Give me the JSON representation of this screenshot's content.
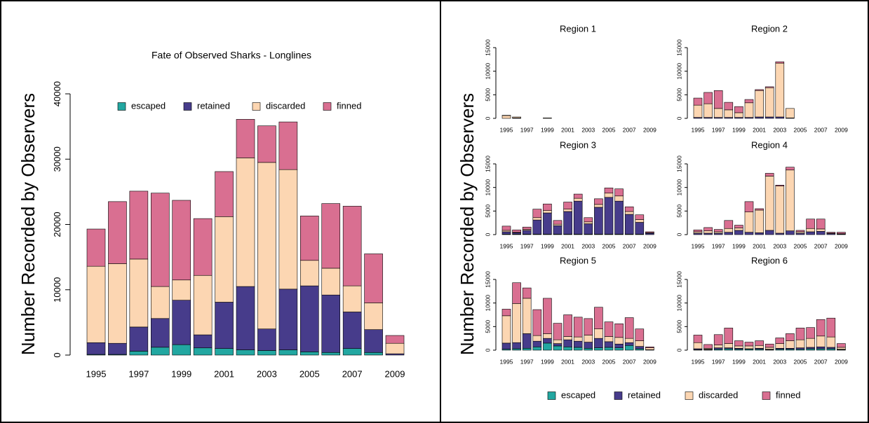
{
  "chart_data": [
    {
      "type": "bar",
      "stacked": true,
      "title": "Fate of Observed Sharks - Longlines",
      "ylabel": "Number Recorded by Observers",
      "categories": [
        "1995",
        null,
        "1997",
        null,
        "1999",
        null,
        "2001",
        null,
        "2003",
        null,
        "2005",
        null,
        "2007",
        null,
        "2009"
      ],
      "ylim": [
        0,
        40000
      ],
      "yticks": [
        0,
        10000,
        20000,
        30000,
        40000
      ],
      "series": [
        {
          "name": "escaped",
          "color": "#22a7a1",
          "values": [
            100,
            100,
            600,
            1200,
            1600,
            1100,
            1000,
            800,
            700,
            800,
            500,
            400,
            1000,
            400,
            0
          ]
        },
        {
          "name": "retained",
          "color": "#473c8b",
          "values": [
            1800,
            1700,
            3700,
            4400,
            6800,
            2000,
            7100,
            9700,
            3300,
            9300,
            10100,
            8800,
            5600,
            3500,
            200
          ]
        },
        {
          "name": "discarded",
          "color": "#fcd6b2",
          "values": [
            11700,
            12200,
            10400,
            4900,
            3100,
            9100,
            13100,
            19700,
            25500,
            18300,
            3900,
            4100,
            4000,
            4100,
            1600
          ]
        },
        {
          "name": "finned",
          "color": "#d96f91",
          "values": [
            5700,
            9500,
            10400,
            14300,
            12200,
            8700,
            6900,
            5900,
            5600,
            7300,
            6800,
            9900,
            12200,
            7500,
            1200
          ]
        }
      ]
    },
    {
      "type": "bar",
      "stacked": true,
      "ylabel": "Number Recorded by Observers",
      "categories": [
        "1995",
        null,
        "1997",
        null,
        "1999",
        null,
        "2001",
        null,
        "2003",
        null,
        "2005",
        null,
        "2007",
        null,
        "2009"
      ],
      "ylim": [
        0,
        15000
      ],
      "yticks": [
        0,
        5000,
        10000,
        15000
      ],
      "series": [
        {
          "name": "escaped",
          "color": "#22a7a1"
        },
        {
          "name": "retained",
          "color": "#473c8b"
        },
        {
          "name": "discarded",
          "color": "#fcd6b2"
        },
        {
          "name": "finned",
          "color": "#d96f91"
        }
      ],
      "panels": [
        {
          "title": "Region 1",
          "values": [
            [
              0,
              0,
              0,
              0,
              0,
              0,
              0,
              0,
              0,
              0,
              0,
              0,
              0,
              0,
              0
            ],
            [
              0,
              100,
              0,
              0,
              0,
              0,
              0,
              0,
              0,
              0,
              0,
              0,
              0,
              0,
              0
            ],
            [
              600,
              200,
              0,
              0,
              100,
              0,
              0,
              0,
              0,
              0,
              0,
              0,
              0,
              0,
              0
            ],
            [
              50,
              0,
              0,
              0,
              0,
              0,
              0,
              0,
              0,
              0,
              0,
              0,
              0,
              0,
              0
            ]
          ]
        },
        {
          "title": "Region 2",
          "values": [
            [
              0,
              0,
              0,
              0,
              0,
              0,
              0,
              0,
              0,
              0,
              0,
              0,
              0,
              0,
              0
            ],
            [
              200,
              200,
              200,
              200,
              200,
              200,
              300,
              300,
              300,
              100,
              0,
              0,
              0,
              0,
              0
            ],
            [
              2600,
              2900,
              1900,
              1600,
              1000,
              3100,
              5600,
              6200,
              11400,
              2000,
              0,
              0,
              0,
              0,
              0
            ],
            [
              1500,
              2400,
              3800,
              1600,
              1300,
              700,
              200,
              200,
              300,
              0,
              0,
              0,
              0,
              0,
              0
            ]
          ]
        },
        {
          "title": "Region 3",
          "values": [
            [
              100,
              100,
              100,
              100,
              100,
              100,
              100,
              100,
              100,
              100,
              100,
              100,
              100,
              100,
              0
            ],
            [
              500,
              300,
              800,
              3000,
              4500,
              1800,
              4800,
              7000,
              2200,
              5700,
              7800,
              7000,
              4200,
              2500,
              300
            ],
            [
              300,
              100,
              200,
              500,
              500,
              300,
              500,
              600,
              400,
              600,
              900,
              1100,
              600,
              600,
              100
            ],
            [
              900,
              500,
              500,
              1800,
              1400,
              800,
              1500,
              900,
              900,
              1200,
              1100,
              1500,
              1000,
              1000,
              200
            ]
          ]
        },
        {
          "title": "Region 4",
          "values": [
            [
              0,
              0,
              0,
              0,
              0,
              0,
              0,
              0,
              0,
              0,
              0,
              0,
              0,
              0,
              0
            ],
            [
              300,
              300,
              300,
              500,
              900,
              500,
              400,
              900,
              300,
              800,
              300,
              600,
              700,
              200,
              100
            ],
            [
              300,
              500,
              300,
              800,
              500,
              4300,
              4800,
              11500,
              10000,
              12900,
              300,
              700,
              500,
              100,
              100
            ],
            [
              400,
              700,
              500,
              1700,
              600,
              2200,
              300,
              600,
              200,
              600,
              300,
              2000,
              2100,
              200,
              300
            ]
          ]
        },
        {
          "title": "Region 5",
          "values": [
            [
              200,
              300,
              400,
              700,
              1500,
              900,
              700,
              600,
              400,
              500,
              600,
              500,
              1000,
              300,
              0
            ],
            [
              1300,
              1300,
              3100,
              1200,
              1000,
              500,
              1500,
              1300,
              1300,
              2000,
              1200,
              800,
              600,
              500,
              100
            ],
            [
              5800,
              8300,
              7500,
              1200,
              1000,
              800,
              700,
              900,
              1500,
              2000,
              1100,
              1400,
              900,
              1200,
              400
            ],
            [
              1400,
              4400,
              2200,
              5500,
              7500,
              3500,
              4600,
              4200,
              3500,
              4600,
              3100,
              2900,
              4400,
              2500,
              200
            ]
          ]
        },
        {
          "title": "Region 6",
          "values": [
            [
              100,
              100,
              200,
              300,
              200,
              200,
              200,
              100,
              200,
              200,
              200,
              300,
              300,
              300,
              100
            ],
            [
              200,
              100,
              300,
              200,
              200,
              100,
              200,
              100,
              200,
              200,
              300,
              300,
              400,
              300,
              100
            ],
            [
              1300,
              200,
              600,
              900,
              500,
              600,
              600,
              400,
              1000,
              1600,
              1700,
              1900,
              2300,
              2200,
              400
            ],
            [
              1600,
              800,
              2200,
              3300,
              1100,
              800,
              1000,
              700,
              1200,
              1500,
              2500,
              2300,
              3500,
              4000,
              800
            ]
          ]
        }
      ]
    }
  ]
}
